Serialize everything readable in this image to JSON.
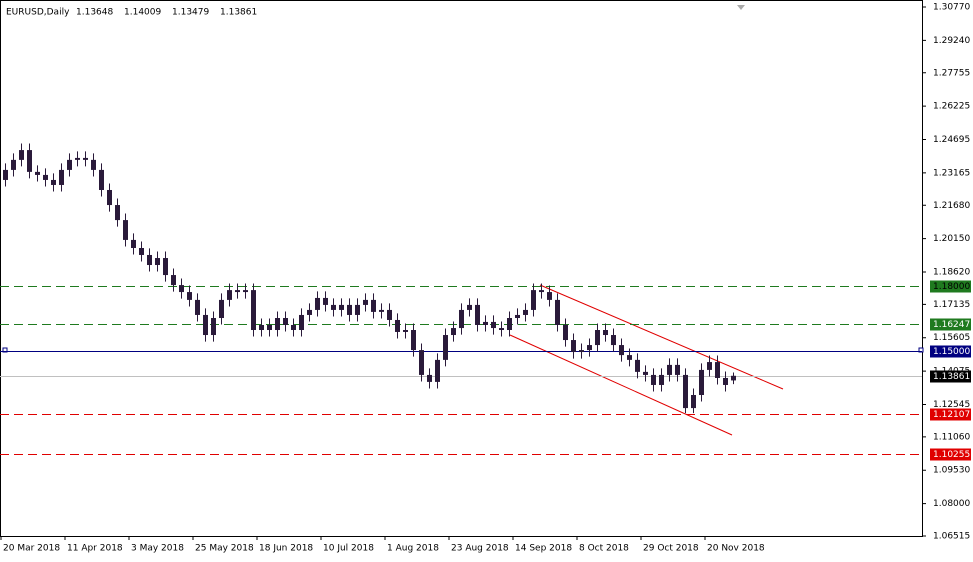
{
  "chart_data": {
    "type": "candlestick",
    "title": "EURUSD,Daily",
    "ohlc_labels": [
      "1.13648",
      "1.14009",
      "1.13479",
      "1.13861"
    ],
    "color": "#2a1a3a",
    "categories": [
      "20 Mar 2018",
      null,
      null,
      null,
      null,
      null,
      null,
      null,
      "11 Apr 2018",
      null,
      null,
      null,
      null,
      null,
      null,
      null,
      "3 May 2018",
      null,
      null,
      null,
      null,
      null,
      null,
      null,
      "25 May 2018",
      null,
      null,
      null,
      null,
      null,
      null,
      null,
      "18 Jun 2018",
      null,
      null,
      null,
      null,
      null,
      null,
      null,
      "10 Jul 2018",
      null,
      null,
      null,
      null,
      null,
      null,
      null,
      "1 Aug 2018",
      null,
      null,
      null,
      null,
      null,
      null,
      null,
      "23 Aug 2018",
      null,
      null,
      null,
      null,
      null,
      null,
      null,
      "14 Sep 2018",
      null,
      null,
      null,
      null,
      null,
      null,
      null,
      "8 Oct 2018",
      null,
      null,
      null,
      null,
      null,
      null,
      null,
      "29 Oct 2018",
      null,
      null,
      null,
      null,
      null,
      null,
      null,
      "20 Nov 2018",
      null,
      null,
      null
    ],
    "open": [
      1.2284,
      1.233,
      1.2376,
      1.2421,
      1.2321,
      1.2307,
      1.2284,
      1.2261,
      1.233,
      1.2376,
      1.2385,
      1.2376,
      1.233,
      1.2238,
      1.2169,
      1.21,
      1.2009,
      1.1972,
      1.194,
      1.1894,
      1.1926,
      1.1848,
      1.1802,
      1.177,
      1.1734,
      1.1665,
      1.1573,
      1.1651,
      1.1734,
      1.1779,
      1.177,
      1.1779,
      1.1596,
      1.1619,
      1.1596,
      1.1651,
      1.1619,
      1.1596,
      1.1665,
      1.1688,
      1.1743,
      1.1711,
      1.1688,
      1.1711,
      1.1665,
      1.1711,
      1.1734,
      1.1679,
      1.1688,
      1.1642,
      1.1587,
      1.1596,
      1.1504,
      1.139,
      1.1358,
      1.1459,
      1.1573,
      1.1605,
      1.1688,
      1.1711,
      1.1619,
      1.1633,
      1.1605,
      1.1596,
      1.1651,
      1.1665,
      1.1688,
      1.1779,
      1.177,
      1.1734,
      1.1619,
      1.155,
      1.1495,
      1.1504,
      1.1527,
      1.1596,
      1.1573,
      1.1527,
      1.1481,
      1.1459,
      1.1404,
      1.139,
      1.1344,
      1.139,
      1.1436,
      1.139,
      1.1238,
      1.1298,
      1.1413,
      1.1449,
      1.1376,
      1.13648
    ],
    "high": [
      1.236,
      1.2406,
      1.2451,
      1.2451,
      1.2351,
      1.2337,
      1.2314,
      1.236,
      1.2406,
      1.2415,
      1.2415,
      1.2406,
      1.236,
      1.2268,
      1.2199,
      1.213,
      1.2039,
      1.2002,
      1.197,
      1.1956,
      1.1956,
      1.1878,
      1.1832,
      1.18,
      1.1764,
      1.1695,
      1.1681,
      1.1764,
      1.1809,
      1.1809,
      1.1809,
      1.1809,
      1.1649,
      1.1649,
      1.1681,
      1.1681,
      1.1649,
      1.1695,
      1.1718,
      1.1773,
      1.1773,
      1.1741,
      1.1741,
      1.1741,
      1.1741,
      1.1764,
      1.1764,
      1.1718,
      1.1718,
      1.1672,
      1.1626,
      1.1626,
      1.1534,
      1.142,
      1.1489,
      1.1603,
      1.1635,
      1.1718,
      1.1741,
      1.1741,
      1.1663,
      1.1663,
      1.1635,
      1.1681,
      1.1695,
      1.1718,
      1.1809,
      1.1809,
      1.18,
      1.1764,
      1.1649,
      1.158,
      1.1534,
      1.1557,
      1.1626,
      1.1626,
      1.1603,
      1.1557,
      1.1511,
      1.1489,
      1.1434,
      1.142,
      1.142,
      1.1466,
      1.1466,
      1.142,
      1.1328,
      1.1443,
      1.1479,
      1.1479,
      1.1406,
      1.14009
    ],
    "low": [
      1.2254,
      1.23,
      1.2346,
      1.2291,
      1.2277,
      1.2254,
      1.2231,
      1.2231,
      1.23,
      1.2346,
      1.2346,
      1.23,
      1.2208,
      1.2139,
      1.207,
      1.1979,
      1.1942,
      1.191,
      1.1864,
      1.1864,
      1.1818,
      1.1772,
      1.174,
      1.1704,
      1.1635,
      1.1543,
      1.1543,
      1.1621,
      1.1704,
      1.174,
      1.174,
      1.1566,
      1.1566,
      1.1566,
      1.1566,
      1.1589,
      1.1566,
      1.1566,
      1.1635,
      1.1658,
      1.1681,
      1.1658,
      1.1658,
      1.1635,
      1.1635,
      1.1681,
      1.1649,
      1.1649,
      1.1612,
      1.1557,
      1.1557,
      1.1474,
      1.136,
      1.1328,
      1.1328,
      1.1429,
      1.1543,
      1.1575,
      1.1658,
      1.1589,
      1.1589,
      1.1575,
      1.1566,
      1.1566,
      1.1621,
      1.1635,
      1.1658,
      1.174,
      1.1704,
      1.1589,
      1.152,
      1.1465,
      1.1465,
      1.1474,
      1.1497,
      1.1543,
      1.1497,
      1.1451,
      1.1429,
      1.1374,
      1.136,
      1.1314,
      1.1314,
      1.136,
      1.136,
      1.1215,
      1.1215,
      1.1268,
      1.1383,
      1.1346,
      1.1314,
      1.13479
    ],
    "close": [
      1.233,
      1.2376,
      1.2421,
      1.2321,
      1.2307,
      1.2284,
      1.2261,
      1.233,
      1.2376,
      1.2385,
      1.2376,
      1.233,
      1.2238,
      1.2169,
      1.21,
      1.2009,
      1.1972,
      1.194,
      1.1894,
      1.1926,
      1.1848,
      1.1802,
      1.177,
      1.1734,
      1.1665,
      1.1573,
      1.1651,
      1.1734,
      1.1779,
      1.177,
      1.1779,
      1.1596,
      1.1619,
      1.1596,
      1.1651,
      1.1619,
      1.1596,
      1.1665,
      1.1688,
      1.1743,
      1.1711,
      1.1688,
      1.1711,
      1.1665,
      1.1711,
      1.1734,
      1.1679,
      1.1688,
      1.1642,
      1.1587,
      1.1596,
      1.1504,
      1.139,
      1.1358,
      1.1459,
      1.1573,
      1.1605,
      1.1688,
      1.1711,
      1.1619,
      1.1633,
      1.1605,
      1.1596,
      1.1651,
      1.1665,
      1.1688,
      1.1779,
      1.177,
      1.1734,
      1.1619,
      1.155,
      1.1495,
      1.1504,
      1.1527,
      1.1596,
      1.1573,
      1.1527,
      1.1481,
      1.1459,
      1.1404,
      1.139,
      1.1344,
      1.139,
      1.1436,
      1.139,
      1.1238,
      1.1298,
      1.1413,
      1.1449,
      1.1376,
      1.1344,
      1.13861
    ],
    "ylim": [
      1.06515,
      1.3077
    ],
    "yticks": [
      {
        "value": 1.3077,
        "label": "1.30770"
      },
      {
        "value": 1.2924,
        "label": "1.29240"
      },
      {
        "value": 1.27755,
        "label": "1.27755"
      },
      {
        "value": 1.26225,
        "label": "1.26225"
      },
      {
        "value": 1.24695,
        "label": "1.24695"
      },
      {
        "value": 1.23165,
        "label": "1.23165"
      },
      {
        "value": 1.2168,
        "label": "1.21680"
      },
      {
        "value": 1.2015,
        "label": "1.20150"
      },
      {
        "value": 1.1862,
        "label": "1.18620"
      },
      {
        "value": 1.17135,
        "label": "1.17135"
      },
      {
        "value": 1.15605,
        "label": "1.15605"
      },
      {
        "value": 1.14075,
        "label": "1.14075"
      },
      {
        "value": 1.12545,
        "label": "1.12545"
      },
      {
        "value": 1.1106,
        "label": "1.11060"
      },
      {
        "value": 1.0953,
        "label": "1.09530"
      },
      {
        "value": 1.08,
        "label": "1.08000"
      },
      {
        "value": 1.06515,
        "label": "1.06515"
      }
    ],
    "levels": [
      {
        "value": 1.18,
        "label": "1.18000",
        "color": "#1f7a1f",
        "text_color": "#000000",
        "dashed": true
      },
      {
        "value": 1.16247,
        "label": "1.16247",
        "color": "#1f7a1f",
        "text_color": "#ffffff",
        "dashed": true
      },
      {
        "value": 1.15,
        "label": "1.15000",
        "color": "#000080",
        "text_color": "#ffffff",
        "dashed": false
      },
      {
        "value": 1.13861,
        "label": "1.13861",
        "color": "#c0c0c0",
        "box_color": "#000000",
        "text_color": "#ffffff",
        "dashed": false
      },
      {
        "value": 1.12107,
        "label": "1.12107",
        "color": "#e00000",
        "text_color": "#ffffff",
        "dashed": true
      },
      {
        "value": 1.10255,
        "label": "1.10255",
        "color": "#e00000",
        "text_color": "#ffffff",
        "dashed": true
      }
    ]
  }
}
